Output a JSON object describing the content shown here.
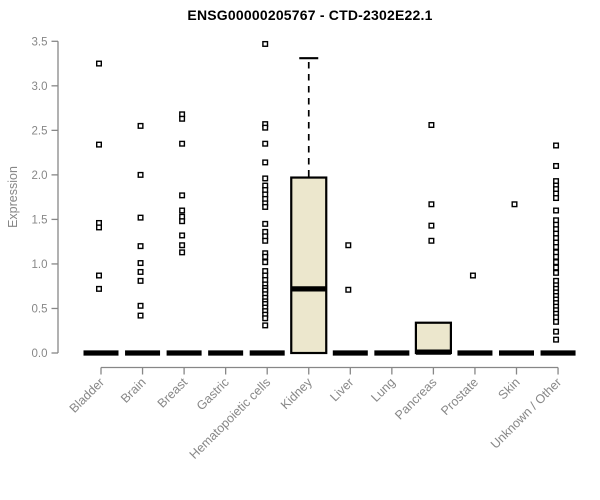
{
  "page": {
    "background": "#ffffff"
  },
  "chart_data": {
    "type": "boxplot",
    "title": "ENSG00000205767 - CTD-2302E22.1",
    "ylabel": "Expression",
    "xlabel": "",
    "ylim": [
      0,
      3.5
    ],
    "yticks": [
      "0.0",
      "0.5",
      "1.0",
      "1.5",
      "2.0",
      "2.5",
      "3.0",
      "3.5"
    ],
    "grid": false,
    "legend": "none",
    "box_fill_color": "#ece7cd",
    "box_border_color": "#000000",
    "point_marker": "open-square",
    "axis_color": "#878787",
    "categories": [
      "Bladder",
      "Brain",
      "Breast",
      "Gastric",
      "Hematopoietic cells",
      "Kidney",
      "Liver",
      "Lung",
      "Pancreas",
      "Prostate",
      "Skin",
      "Unknown / Other"
    ],
    "series": [
      {
        "name": "Bladder",
        "q1": 0,
        "median": 0,
        "q3": 0,
        "whisker_low": 0,
        "whisker_high": 0,
        "outliers": [
          3.25,
          2.34,
          1.46,
          1.41,
          0.87,
          0.72
        ]
      },
      {
        "name": "Brain",
        "q1": 0,
        "median": 0,
        "q3": 0,
        "whisker_low": 0,
        "whisker_high": 0,
        "outliers": [
          2.55,
          2.0,
          1.52,
          1.2,
          1.01,
          0.91,
          0.81,
          0.53,
          0.42
        ]
      },
      {
        "name": "Breast",
        "q1": 0,
        "median": 0,
        "q3": 0,
        "whisker_low": 0,
        "whisker_high": 0,
        "outliers": [
          2.68,
          2.63,
          2.35,
          1.77,
          1.6,
          1.53,
          1.48,
          1.32,
          1.21,
          1.13
        ]
      },
      {
        "name": "Gastric",
        "q1": 0,
        "median": 0,
        "q3": 0,
        "whisker_low": 0,
        "whisker_high": 0,
        "outliers": []
      },
      {
        "name": "Hematopoietic cells",
        "q1": 0,
        "median": 0,
        "q3": 0,
        "whisker_low": 0,
        "whisker_high": 0,
        "outliers": [
          3.47,
          2.57,
          2.53,
          2.35,
          2.14,
          1.96,
          1.88,
          1.83,
          1.78,
          1.73,
          1.68,
          1.64,
          1.45,
          1.36,
          1.31,
          1.26,
          1.12,
          1.08,
          1.02,
          0.92,
          0.87,
          0.82,
          0.77,
          0.73,
          0.7,
          0.66,
          0.62,
          0.58,
          0.55,
          0.51,
          0.47,
          0.43,
          0.39,
          0.31
        ]
      },
      {
        "name": "Kidney",
        "q1": 0,
        "median": 0.72,
        "q3": 1.97,
        "whisker_low": 0,
        "whisker_high": 3.31,
        "outliers": []
      },
      {
        "name": "Liver",
        "q1": 0,
        "median": 0,
        "q3": 0,
        "whisker_low": 0,
        "whisker_high": 0,
        "outliers": [
          1.21,
          0.71
        ]
      },
      {
        "name": "Lung",
        "q1": 0,
        "median": 0,
        "q3": 0,
        "whisker_low": 0,
        "whisker_high": 0,
        "outliers": []
      },
      {
        "name": "Pancreas",
        "q1": 0,
        "median": 0.01,
        "q3": 0.34,
        "whisker_low": 0,
        "whisker_high": 0.34,
        "outliers": [
          2.56,
          1.67,
          1.43,
          1.26
        ]
      },
      {
        "name": "Prostate",
        "q1": 0,
        "median": 0,
        "q3": 0,
        "whisker_low": 0,
        "whisker_high": 0,
        "outliers": [
          0.87
        ]
      },
      {
        "name": "Skin",
        "q1": 0,
        "median": 0,
        "q3": 0,
        "whisker_low": 0,
        "whisker_high": 0,
        "outliers": [
          1.67
        ]
      },
      {
        "name": "Unknown / Other",
        "q1": 0,
        "median": 0,
        "q3": 0,
        "whisker_low": 0,
        "whisker_high": 0,
        "outliers": [
          2.33,
          2.1,
          1.93,
          1.88,
          1.84,
          1.79,
          1.74,
          1.6,
          1.49,
          1.44,
          1.39,
          1.34,
          1.29,
          1.24,
          1.19,
          1.13,
          1.08,
          1.02,
          0.96,
          0.9,
          0.81,
          0.76,
          0.72,
          0.68,
          0.64,
          0.6,
          0.56,
          0.52,
          0.48,
          0.44,
          0.4,
          0.35,
          0.24,
          0.15
        ]
      }
    ]
  }
}
